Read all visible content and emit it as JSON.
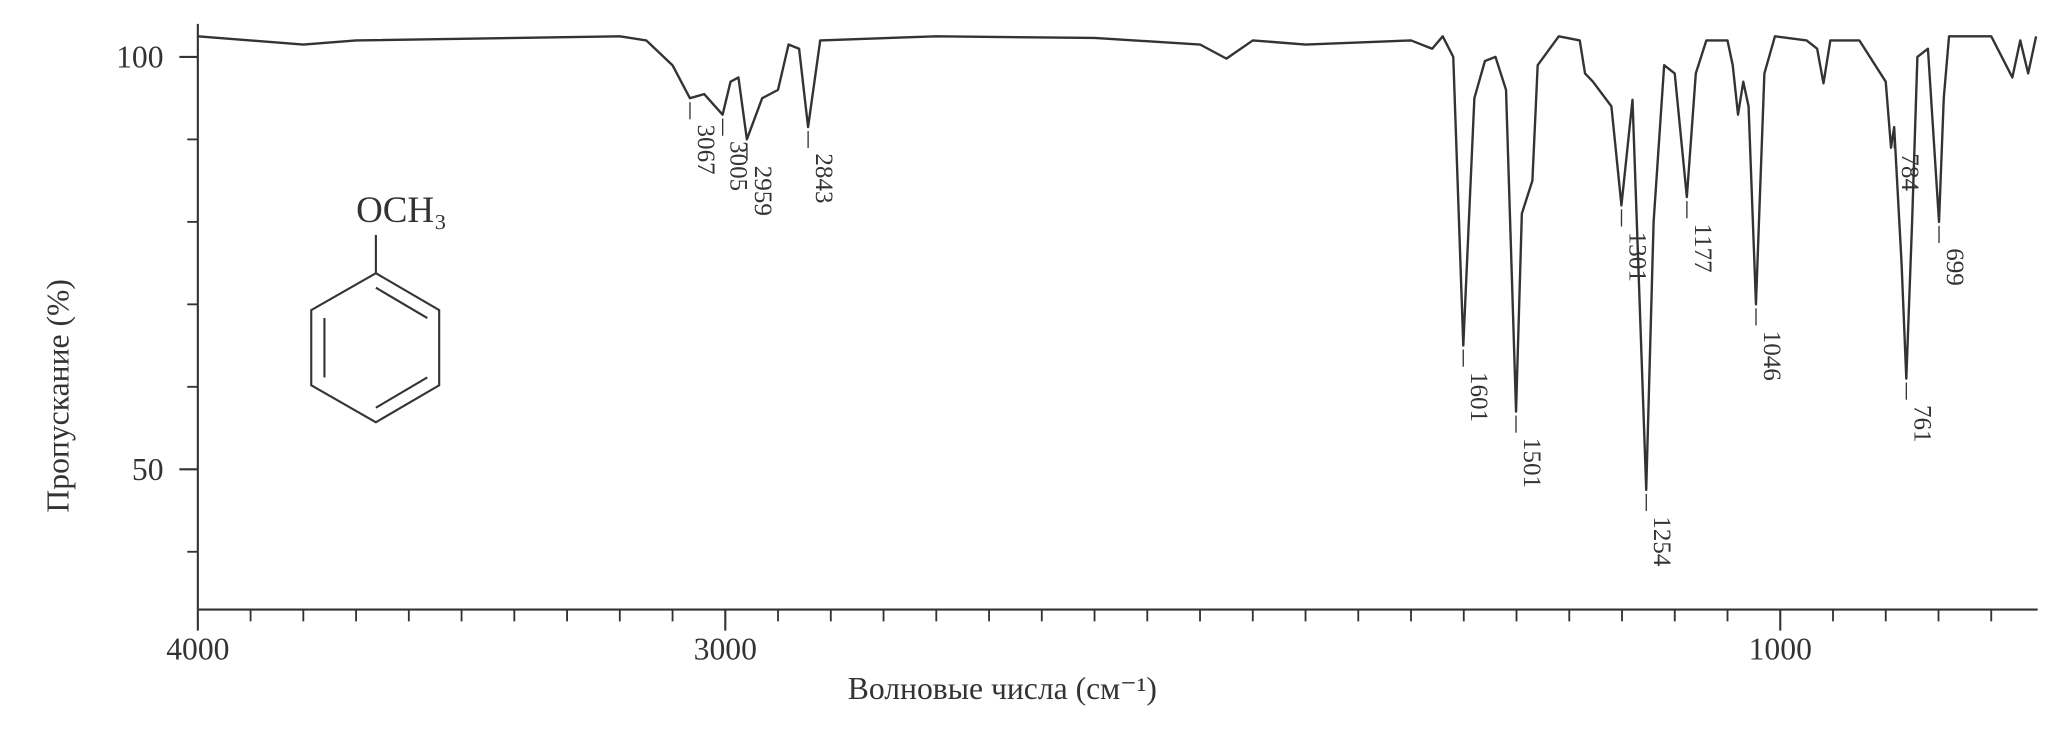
{
  "chart_data": {
    "type": "line",
    "x_label": "Волновые числа (см⁻¹)",
    "y_label": "Пропускание  (%)",
    "structure_label": "OCH₃",
    "color": "#333333",
    "xlim": [
      4000,
      512
    ],
    "ylim": [
      33,
      104
    ],
    "xticks": [
      4000,
      3000,
      1000
    ],
    "xticks_minor": [
      3900,
      3800,
      3700,
      3600,
      3500,
      3400,
      3300,
      3200,
      3100,
      2900,
      2800,
      2700,
      2600,
      2500,
      2400,
      2300,
      2200,
      2100,
      2000,
      1900,
      1800,
      1700,
      1600,
      1500,
      1400,
      1300,
      1200,
      1100,
      900,
      800,
      700,
      600
    ],
    "yticks": [
      100,
      50
    ],
    "yticks_minor": [
      90,
      80,
      70,
      60,
      40
    ],
    "x": [
      4000,
      3800,
      3700,
      3200,
      3150,
      3100,
      3067,
      3040,
      3005,
      2990,
      2975,
      2959,
      2930,
      2900,
      2880,
      2860,
      2843,
      2820,
      2600,
      2300,
      2100,
      2050,
      2000,
      1900,
      1700,
      1660,
      1640,
      1620,
      1601,
      1580,
      1560,
      1540,
      1520,
      1501,
      1490,
      1470,
      1460,
      1420,
      1380,
      1370,
      1355,
      1320,
      1301,
      1280,
      1254,
      1240,
      1220,
      1200,
      1177,
      1160,
      1140,
      1100,
      1090,
      1080,
      1070,
      1060,
      1046,
      1030,
      1010,
      950,
      930,
      918,
      905,
      850,
      800,
      790,
      784,
      770,
      761,
      750,
      740,
      720,
      699,
      690,
      680,
      600,
      560,
      545,
      530,
      515
    ],
    "values": [
      102.5,
      101.5,
      102,
      102.5,
      102,
      99,
      95,
      95.5,
      93,
      97,
      97.5,
      90,
      95,
      96,
      101.5,
      101,
      91.5,
      102,
      102.5,
      102.3,
      101.5,
      99.8,
      102,
      101.5,
      102,
      101,
      102.5,
      100,
      65,
      95,
      99.5,
      100,
      96,
      57,
      81,
      85,
      99,
      102.5,
      102,
      98,
      97,
      94,
      82,
      94.8,
      47.5,
      80,
      99,
      98,
      83,
      98,
      102,
      102,
      99,
      93,
      97,
      94,
      70,
      98,
      102.5,
      102,
      101,
      96.8,
      102,
      102,
      97,
      89,
      91.5,
      75,
      61,
      80,
      100,
      101,
      80,
      95,
      102.5,
      102.5,
      97.5,
      102,
      98,
      102.5
    ],
    "peaks": [
      3067,
      3005,
      2959,
      2843,
      1601,
      1501,
      1301,
      1254,
      1177,
      1046,
      784,
      761,
      699
    ]
  }
}
